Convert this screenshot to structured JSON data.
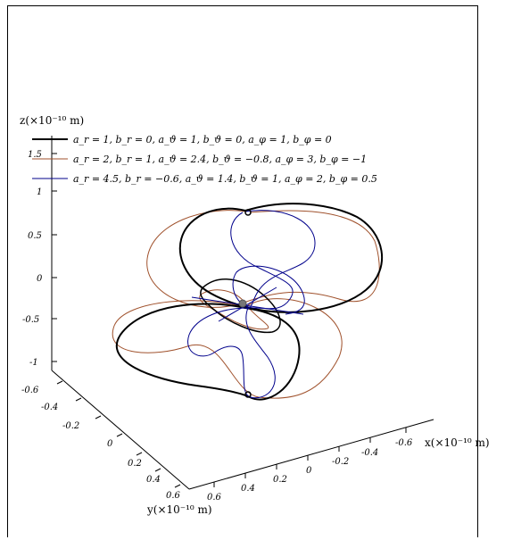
{
  "chart_data": {
    "type": "line",
    "projection": "3d",
    "axes": {
      "x": {
        "label": "x(×10⁻¹⁰ m)",
        "ticks": [
          "-0.6",
          "-0.4",
          "-0.2",
          "0",
          "0.2",
          "0.4",
          "0.6"
        ]
      },
      "y": {
        "label": "y(×10⁻¹⁰ m)",
        "ticks": [
          "-0.6",
          "-0.4",
          "-0.2",
          "0",
          "0.2",
          "0.4",
          "0.6"
        ]
      },
      "z": {
        "label": "z(×10⁻¹⁰ m)",
        "ticks": [
          "-1",
          "-0.5",
          "0",
          "0.5",
          "1",
          "1.5"
        ]
      }
    },
    "series": [
      {
        "name": "a_r = 1, b_r = 0, a_ϑ = 1, b_ϑ = 0, a_φ = 1, b_φ = 0",
        "color": "#000000",
        "params": {
          "a_r": 1,
          "b_r": 0,
          "a_theta": 1,
          "b_theta": 0,
          "a_phi": 1,
          "b_phi": 0
        }
      },
      {
        "name": "a_r = 2, b_r = 1, a_ϑ = 2.4, b_ϑ = −0.8, a_φ = 3, b_φ = −1",
        "color": "#a0522d",
        "params": {
          "a_r": 2,
          "b_r": 1,
          "a_theta": 2.4,
          "b_theta": -0.8,
          "a_phi": 3,
          "b_phi": -1
        }
      },
      {
        "name": "a_r = 4.5, b_r = −0.6, a_ϑ = 1.4, b_ϑ = 1, a_φ = 2, b_φ = 0.5",
        "color": "#00008b",
        "params": {
          "a_r": 4.5,
          "b_r": -0.6,
          "a_theta": 1.4,
          "b_theta": 1,
          "a_phi": 2,
          "b_phi": 0.5
        }
      }
    ],
    "legend": {
      "position": "top-left"
    },
    "grid": false
  }
}
